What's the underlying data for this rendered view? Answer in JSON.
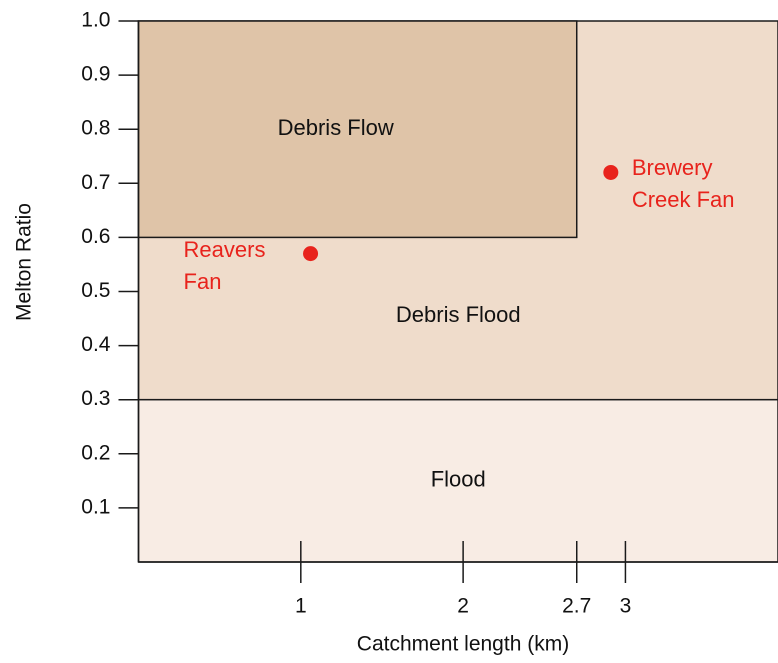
{
  "chart_data": {
    "type": "scatter",
    "x_label": "Catchment length (km)",
    "y_label": "Melton Ratio",
    "xlim": [
      0,
      3.94
    ],
    "ylim": [
      0,
      1
    ],
    "xticks": [
      1,
      2,
      2.7,
      3
    ],
    "yticks": [
      0.1,
      0.2,
      0.3,
      0.4,
      0.5,
      0.6,
      0.7,
      0.8,
      0.9,
      {
        "value": 1,
        "label": "1.0"
      }
    ],
    "regions": [
      {
        "label": "Debris Flood",
        "x": [
          0,
          3.94
        ],
        "y": [
          0.3,
          1
        ],
        "color": "#efdccb"
      },
      {
        "label": "Debris Flow",
        "x": [
          0,
          2.7
        ],
        "y": [
          0.6,
          1
        ],
        "color": "#dfc4a8"
      },
      {
        "label": "Flood",
        "x": [
          0,
          3.94
        ],
        "y": [
          0,
          0.3
        ],
        "color": "#f8ece4"
      }
    ],
    "series": [
      {
        "name": "Reavers Fan",
        "color": "#e8231c",
        "x": [
          1.06
        ],
        "values": [
          0.57
        ]
      },
      {
        "name": "Brewery Creek Fan",
        "color": "#e8231c",
        "x": [
          2.91
        ],
        "values": [
          0.72
        ]
      }
    ]
  }
}
